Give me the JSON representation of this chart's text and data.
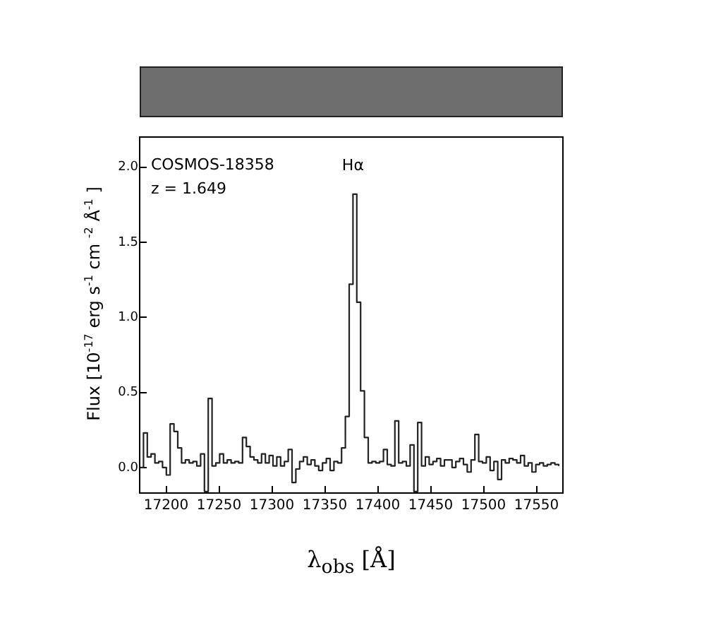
{
  "chart_data": {
    "type": "step",
    "xlabel": "λ$_{obs}$ [Å]",
    "ylabel": "Flux [10$^{-17}$ erg s$^{-1}$ cm $^{-2}$ Å$^{-1}$ ]",
    "annotations": [
      "COSMOS-18358",
      "z = 1.649",
      {
        "text": "Hα",
        "x": 17376.6,
        "y": 1.82
      }
    ],
    "xlim": [
      17175,
      17575
    ],
    "xticks": [
      17200,
      17250,
      17300,
      17350,
      17400,
      17450,
      17500,
      17550
    ],
    "ylim": [
      -0.17,
      2.2
    ],
    "yticks": [
      {
        "value": 0,
        "label": "0.0"
      },
      {
        "value": 0.5,
        "label": "0.5"
      },
      {
        "value": 1,
        "label": "1.0"
      },
      {
        "value": 1.5,
        "label": "1.5"
      },
      {
        "value": 2,
        "label": "2.0"
      }
    ],
    "grid": false,
    "legend": false,
    "marker": "none",
    "line_style": "solid",
    "series": [
      {
        "color": "#222222",
        "x": [
          17175,
          17178.6,
          17182.2,
          17185.8,
          17189.4,
          17193,
          17196.6,
          17200.2,
          17203.8,
          17207.4,
          17211,
          17214.6,
          17218.2,
          17221.8,
          17225.4,
          17229,
          17232.6,
          17236.2,
          17239.8,
          17243.4,
          17247,
          17250.6,
          17254.2,
          17257.8,
          17261.4,
          17265,
          17268.6,
          17272.2,
          17275.8,
          17279.4,
          17283,
          17286.6,
          17290.2,
          17293.8,
          17297.4,
          17301,
          17304.6,
          17308.2,
          17311.8,
          17315.4,
          17319,
          17322.6,
          17326.2,
          17329.8,
          17333.4,
          17337,
          17340.6,
          17344.2,
          17347.8,
          17351.4,
          17355,
          17358.6,
          17362.2,
          17365.8,
          17369.4,
          17373,
          17376.6,
          17380.2,
          17383.8,
          17387.4,
          17391,
          17394.6,
          17398.2,
          17401.8,
          17405.4,
          17409,
          17412.6,
          17416.2,
          17419.8,
          17423.4,
          17427,
          17430.6,
          17434.2,
          17437.8,
          17441.4,
          17445,
          17448.6,
          17452.2,
          17455.8,
          17459.4,
          17463,
          17466.6,
          17470.2,
          17473.8,
          17477.4,
          17481,
          17484.6,
          17488.2,
          17491.8,
          17495.4,
          17499,
          17502.6,
          17506.2,
          17509.8,
          17513.4,
          17517,
          17520.6,
          17524.2,
          17527.8,
          17531.4,
          17535,
          17538.6,
          17542.2,
          17545.8,
          17549.4,
          17553,
          17556.6,
          17560.2,
          17563.8,
          17567.4,
          17571
        ],
        "values": [
          0.0,
          0.23,
          0.07,
          0.09,
          0.03,
          0.04,
          0.0,
          -0.05,
          0.29,
          0.24,
          0.13,
          0.03,
          0.05,
          0.03,
          0.04,
          0.01,
          0.09,
          -0.16,
          0.46,
          0.01,
          0.03,
          0.09,
          0.03,
          0.05,
          0.03,
          0.04,
          0.03,
          0.2,
          0.14,
          0.07,
          0.05,
          0.03,
          0.09,
          0.03,
          0.08,
          0.01,
          0.07,
          0.01,
          0.04,
          0.12,
          -0.1,
          -0.01,
          0.04,
          0.07,
          0.02,
          0.05,
          0.01,
          -0.02,
          0.03,
          0.06,
          -0.02,
          0.04,
          0.03,
          0.13,
          0.34,
          1.22,
          1.82,
          1.1,
          0.51,
          0.2,
          0.03,
          0.04,
          0.03,
          0.04,
          0.12,
          0.02,
          0.01,
          0.31,
          0.03,
          0.04,
          0.01,
          0.15,
          -0.16,
          0.3,
          0.01,
          0.07,
          0.02,
          0.04,
          0.06,
          0.01,
          0.05,
          0.05,
          0.0,
          0.04,
          0.06,
          0.02,
          -0.03,
          0.05,
          0.22,
          0.04,
          0.03,
          0.07,
          -0.02,
          0.04,
          -0.08,
          0.05,
          0.03,
          0.06,
          0.05,
          0.03,
          0.08,
          0.01,
          0.03,
          -0.03,
          0.02,
          0.03,
          0.01,
          0.02,
          0.03,
          0.02,
          0.01
        ]
      }
    ]
  }
}
